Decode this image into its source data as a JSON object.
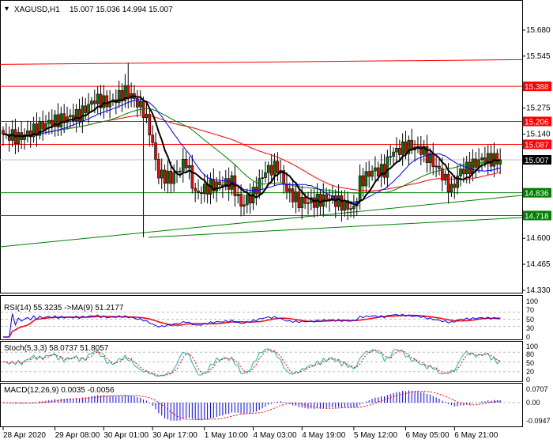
{
  "header": {
    "symbol": "XAGUSD,H1",
    "ohlc": "15.007 15.036 14.994 15.007"
  },
  "colors": {
    "bull": "#008000",
    "bear": "#ff0000",
    "ma_fast": "#000000",
    "ma_mid": "#0000ff",
    "ma_slow": "#008000",
    "ma_long": "#ff0000",
    "resistance": "#ff0000",
    "support": "#008000"
  },
  "chart_data": [
    {
      "type": "candlestick",
      "title": "XAGUSD,H1",
      "ylim": [
        14.33,
        15.68
      ],
      "y_ticks": [
        "15.680",
        "15.545",
        "15.275",
        "15.140",
        "14.600",
        "14.465",
        "14.330"
      ],
      "price_labels": [
        {
          "value": "15.388",
          "kind": "resistance"
        },
        {
          "value": "15.206",
          "kind": "resistance"
        },
        {
          "value": "15.087",
          "kind": "resistance"
        },
        {
          "value": "15.007",
          "kind": "current"
        },
        {
          "value": "14.836",
          "kind": "support"
        },
        {
          "value": "14.718",
          "kind": "support"
        }
      ],
      "close_path": [
        [
          1,
          15.14
        ],
        [
          5,
          15.12
        ],
        [
          10,
          15.16
        ],
        [
          15,
          15.2
        ],
        [
          20,
          15.22
        ],
        [
          25,
          15.24
        ],
        [
          30,
          15.32
        ],
        [
          35,
          15.3
        ],
        [
          40,
          15.36
        ],
        [
          42,
          15.34
        ],
        [
          46,
          15.26
        ],
        [
          48,
          15.16
        ],
        [
          51,
          14.93
        ],
        [
          55,
          14.91
        ],
        [
          60,
          15.0
        ],
        [
          63,
          14.83
        ],
        [
          68,
          14.87
        ],
        [
          75,
          14.89
        ],
        [
          78,
          14.77
        ],
        [
          82,
          14.83
        ],
        [
          86,
          14.95
        ],
        [
          90,
          14.97
        ],
        [
          93,
          14.85
        ],
        [
          97,
          14.79
        ],
        [
          102,
          14.79
        ],
        [
          107,
          14.81
        ],
        [
          112,
          14.77
        ],
        [
          115,
          14.75
        ],
        [
          117,
          14.89
        ],
        [
          121,
          14.95
        ],
        [
          125,
          14.95
        ],
        [
          127,
          15.04
        ],
        [
          130,
          15.06
        ],
        [
          133,
          15.08
        ],
        [
          137,
          15.06
        ],
        [
          140,
          15.01
        ],
        [
          143,
          14.95
        ],
        [
          147,
          14.85
        ],
        [
          150,
          14.95
        ],
        [
          153,
          14.97
        ],
        [
          157,
          15.01
        ],
        [
          163,
          15.007
        ]
      ],
      "x_ticks": [
        {
          "bar": 0,
          "label": "28 Apr 2020"
        },
        {
          "bar": 17,
          "label": "29 Apr 08:00"
        },
        {
          "bar": 33,
          "label": "30 Apr 01:00"
        },
        {
          "bar": 49,
          "label": "30 Apr 17:00"
        },
        {
          "bar": 66,
          "label": "1 May 10:00"
        },
        {
          "bar": 82,
          "label": "4 May 03:00"
        },
        {
          "bar": 98,
          "label": "4 May 19:00"
        },
        {
          "bar": 115,
          "label": "5 May 12:00"
        },
        {
          "bar": 132,
          "label": "6 May 05:00"
        },
        {
          "bar": 148,
          "label": "6 May 21:00"
        }
      ]
    },
    {
      "type": "line",
      "title": "RSI(14) 55.3235  ->MA(9) 51.2177",
      "ylim": [
        0,
        100
      ],
      "y_ticks": [
        "100",
        "70",
        "50",
        "30",
        "0"
      ],
      "levels": [
        70,
        50,
        30
      ]
    },
    {
      "type": "line",
      "title": "Stoch(5,3,3) 58.0737 51.8057",
      "ylim": [
        0,
        100
      ],
      "y_ticks": [
        "100",
        "80",
        "50",
        "20",
        "0"
      ],
      "levels": [
        80,
        50,
        20
      ]
    },
    {
      "type": "bar",
      "title": "MACD(12,26,9) 0.0035 -0.0056",
      "ylim": [
        -0.0947,
        0.0707
      ],
      "y_ticks": [
        "0.0707",
        "0.00",
        "-0.0947"
      ]
    }
  ]
}
